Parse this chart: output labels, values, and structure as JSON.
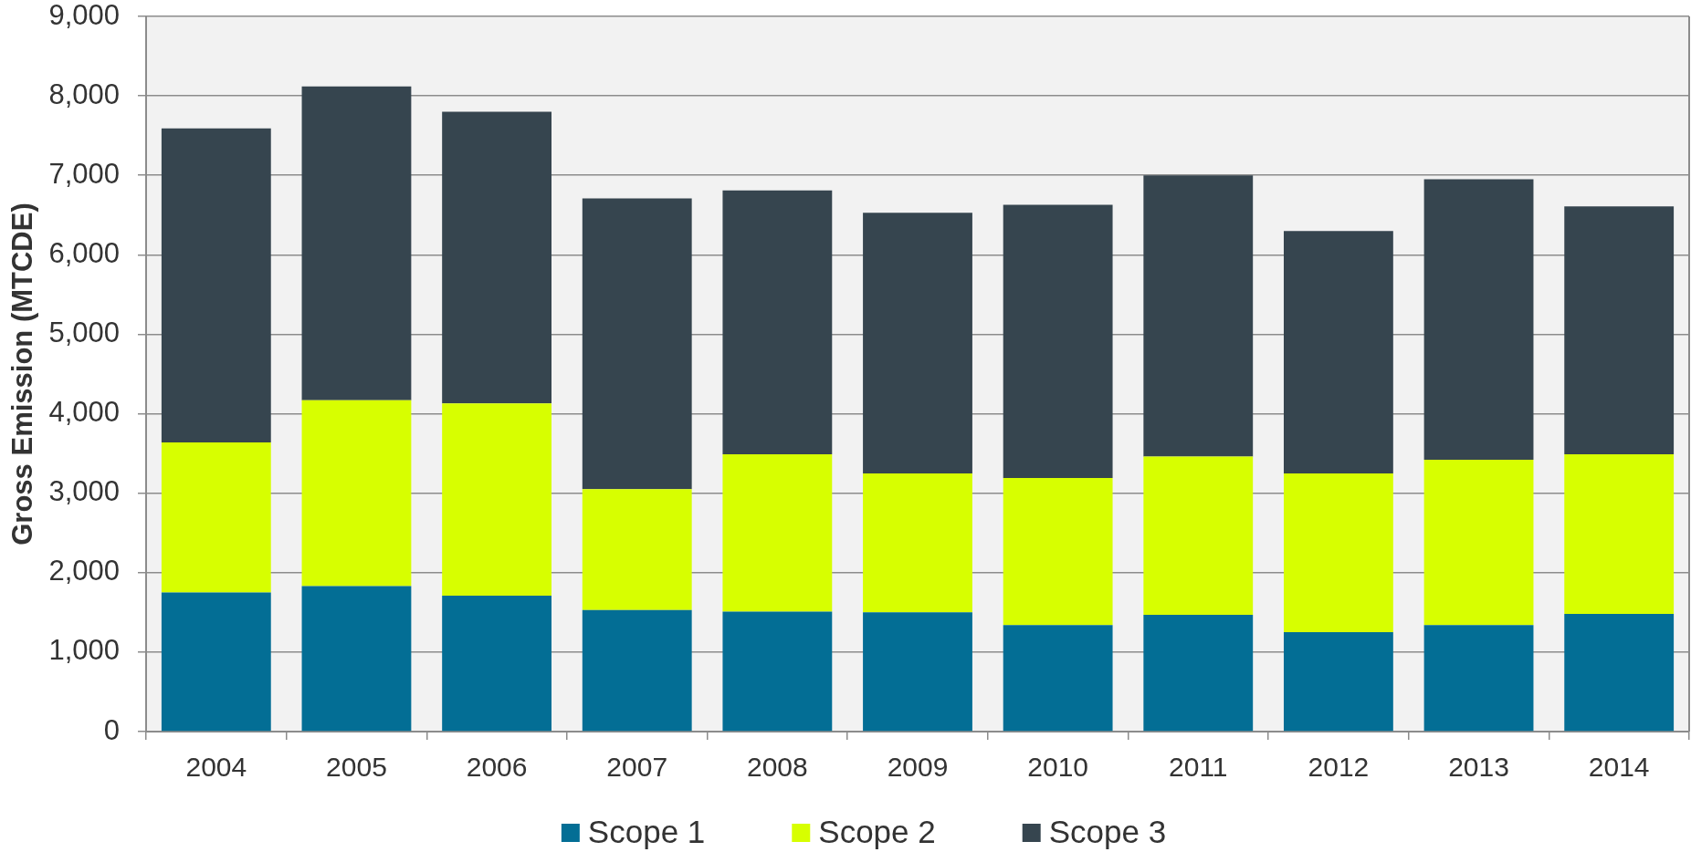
{
  "chart_data": {
    "type": "bar",
    "ylabel": "Gross Emission (MTCDE)",
    "categories": [
      "2004",
      "2005",
      "2006",
      "2007",
      "2008",
      "2009",
      "2010",
      "2011",
      "2012",
      "2013",
      "2014"
    ],
    "series": [
      {
        "name": "Scope 1",
        "color": "#036e95",
        "values": [
          1750,
          1830,
          1710,
          1530,
          1510,
          1500,
          1340,
          1470,
          1250,
          1340,
          1480
        ]
      },
      {
        "name": "Scope 2",
        "color": "#d7ff00",
        "values": [
          1890,
          2340,
          2420,
          1520,
          1980,
          1750,
          1850,
          1990,
          2000,
          2080,
          2010
        ]
      },
      {
        "name": "Scope 3",
        "color": "#36454f",
        "values": [
          3950,
          3950,
          3670,
          3660,
          3320,
          3280,
          3440,
          3540,
          3050,
          3530,
          3120
        ]
      }
    ],
    "stacked": true,
    "ylim": [
      0,
      9000
    ],
    "yticks": [
      0,
      {
        "value": 1000,
        "label": "1,000"
      },
      {
        "value": 2000,
        "label": "2,000"
      },
      {
        "value": 3000,
        "label": "3,000"
      },
      {
        "value": 4000,
        "label": "4,000"
      },
      {
        "value": 5000,
        "label": "5,000"
      },
      {
        "value": 6000,
        "label": "6,000"
      },
      {
        "value": 7000,
        "label": "7,000"
      },
      {
        "value": 8000,
        "label": "8,000"
      },
      {
        "value": 9000,
        "label": "9,000"
      }
    ],
    "grid": "y",
    "legend": "bottom"
  }
}
